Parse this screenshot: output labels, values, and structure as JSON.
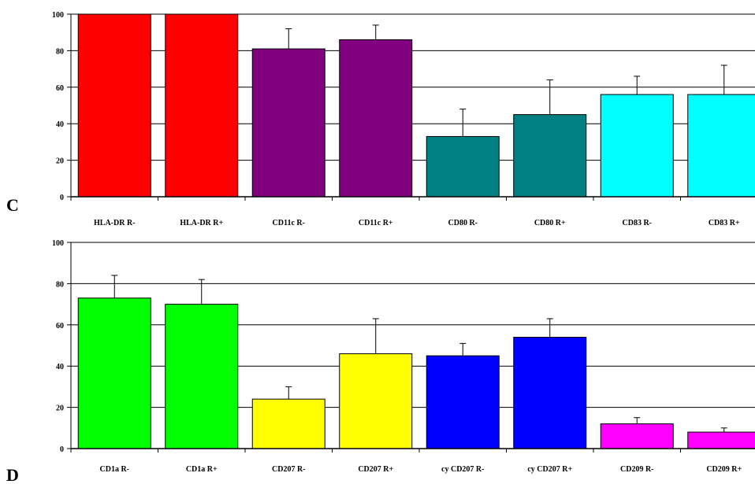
{
  "chart_data": [
    {
      "type": "bar",
      "panel_label": "C",
      "categories": [
        "HLA-DR R-",
        "HLA-DR R+",
        "CD11c R-",
        "CD11c R+",
        "CD80 R-",
        "CD80 R+",
        "CD83 R-",
        "CD83 R+"
      ],
      "values": [
        100,
        100,
        81,
        86,
        33,
        45,
        56,
        56
      ],
      "errors": [
        0,
        0,
        11,
        8,
        15,
        19,
        10,
        16
      ],
      "colors": [
        "#ff0000",
        "#ff0000",
        "#800080",
        "#800080",
        "#008080",
        "#008080",
        "#00ffff",
        "#00ffff"
      ],
      "ylim": [
        0,
        100
      ],
      "yticks": [
        "0",
        "20",
        "40",
        "60",
        "80",
        "100"
      ],
      "grid": true,
      "title": "",
      "xlabel": "",
      "ylabel": ""
    },
    {
      "type": "bar",
      "panel_label": "D",
      "categories": [
        "CD1a R-",
        "CD1a R+",
        "CD207 R-",
        "CD207 R+",
        "cy CD207 R-",
        "cy CD207 R+",
        "CD209 R-",
        "CD209 R+"
      ],
      "values": [
        73,
        70,
        24,
        46,
        45,
        54,
        12,
        8
      ],
      "errors": [
        11,
        12,
        6,
        17,
        6,
        9,
        3,
        2
      ],
      "colors": [
        "#00ff00",
        "#00ff00",
        "#ffff00",
        "#ffff00",
        "#0000ff",
        "#0000ff",
        "#ff00ff",
        "#ff00ff"
      ],
      "ylim": [
        0,
        100
      ],
      "yticks": [
        "0",
        "20",
        "40",
        "60",
        "80",
        "100"
      ],
      "grid": true,
      "title": "",
      "xlabel": "",
      "ylabel": ""
    }
  ]
}
